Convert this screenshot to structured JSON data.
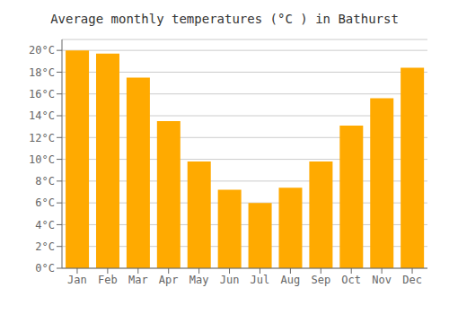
{
  "chart_data": {
    "type": "bar",
    "title": "Average monthly temperatures (°C ) in Bathurst",
    "categories": [
      "Jan",
      "Feb",
      "Mar",
      "Apr",
      "May",
      "Jun",
      "Jul",
      "Aug",
      "Sep",
      "Oct",
      "Nov",
      "Dec"
    ],
    "values": [
      20.0,
      19.7,
      17.5,
      13.5,
      9.8,
      7.2,
      6.0,
      7.4,
      9.8,
      13.1,
      15.6,
      18.4
    ],
    "color": "#FFAA00",
    "ylim": [
      0,
      21
    ],
    "yticks": [
      {
        "value": 0,
        "label": "0°C"
      },
      {
        "value": 2,
        "label": "2°C"
      },
      {
        "value": 4,
        "label": "4°C"
      },
      {
        "value": 6,
        "label": "6°C"
      },
      {
        "value": 8,
        "label": "8°C"
      },
      {
        "value": 10,
        "label": "10°C"
      },
      {
        "value": 12,
        "label": "12°C"
      },
      {
        "value": 14,
        "label": "14°C"
      },
      {
        "value": 16,
        "label": "16°C"
      },
      {
        "value": 18,
        "label": "18°C"
      },
      {
        "value": 20,
        "label": "20°C"
      }
    ],
    "grid": true
  }
}
